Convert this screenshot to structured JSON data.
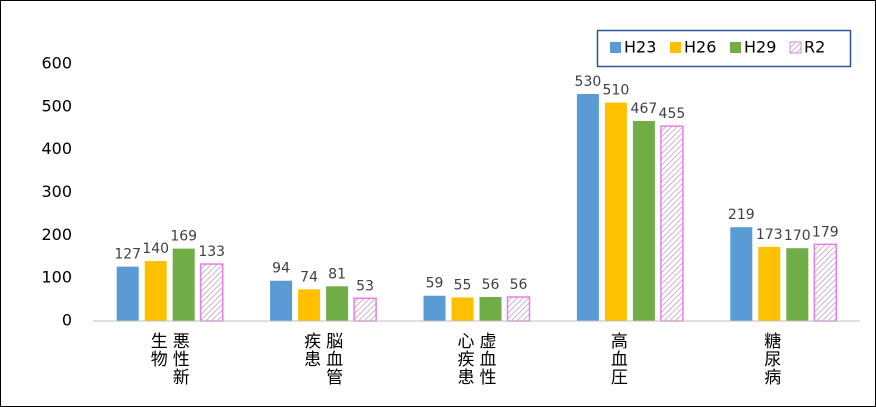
{
  "chart_data": {
    "type": "bar",
    "categories": [
      "悪性新生物",
      "脳血管疾患",
      "虚血性心疾患",
      "高血圧",
      "糖尿病"
    ],
    "series": [
      {
        "name": "H23",
        "color": "#5b9bd5",
        "values": [
          127,
          94,
          59,
          530,
          219
        ]
      },
      {
        "name": "H26",
        "color": "#ffc000",
        "values": [
          140,
          74,
          55,
          510,
          173
        ]
      },
      {
        "name": "H29",
        "color": "#70ad47",
        "values": [
          169,
          81,
          56,
          467,
          170
        ]
      },
      {
        "name": "R2",
        "color": "#e87ee8",
        "hatch": true,
        "values": [
          133,
          53,
          56,
          455,
          179
        ]
      }
    ],
    "ylim": [
      0,
      600
    ],
    "yticks": [
      0,
      100,
      200,
      300,
      400,
      500,
      600
    ],
    "grid": false,
    "legend": "top-right"
  }
}
